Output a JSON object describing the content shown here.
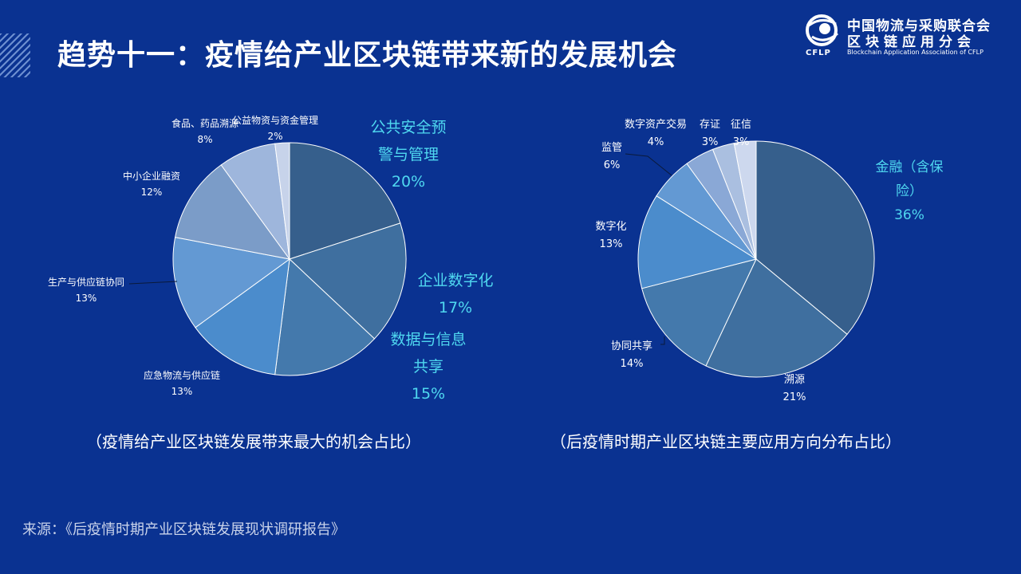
{
  "header": {
    "title": "趋势十一：疫情给产业区块链带来新的发展机会",
    "logo_line1": "中国物流与采购联合会",
    "logo_line2": "区块链应用分会",
    "logo_sub": "Blockchain Application Association of CFLP",
    "logo_abbr": "CFLP"
  },
  "chart_data": [
    {
      "type": "pie",
      "caption": "（疫情给产业区块链发展带来最大的机会占比）",
      "slices": [
        {
          "label": "公共安全预警与管理",
          "value": 20,
          "pct": "20%"
        },
        {
          "label": "企业数字化",
          "value": 17,
          "pct": "17%"
        },
        {
          "label": "数据与信息共享",
          "value": 15,
          "pct": "15%"
        },
        {
          "label": "应急物流与供应链",
          "value": 13,
          "pct": "13%"
        },
        {
          "label": "生产与供应链协同",
          "value": 13,
          "pct": "13%"
        },
        {
          "label": "中小企业融资",
          "value": 12,
          "pct": "12%"
        },
        {
          "label": "食品、药品溯源",
          "value": 8,
          "pct": "8%"
        },
        {
          "label": "公益物资与资金管理",
          "value": 2,
          "pct": "2%"
        }
      ],
      "colors": [
        "#365f8c",
        "#3f6f9f",
        "#4479ac",
        "#4b8ccc",
        "#6399d3",
        "#7b9cc8",
        "#9eb6dc",
        "#c7d3ea"
      ]
    },
    {
      "type": "pie",
      "caption": "（后疫情时期产业区块链主要应用方向分布占比）",
      "slices": [
        {
          "label": "金融（含保险）",
          "value": 36,
          "pct": "36%"
        },
        {
          "label": "溯源",
          "value": 21,
          "pct": "21%"
        },
        {
          "label": "协同共享",
          "value": 14,
          "pct": "14%"
        },
        {
          "label": "数字化",
          "value": 13,
          "pct": "13%"
        },
        {
          "label": "监管",
          "value": 6,
          "pct": "6%"
        },
        {
          "label": "数字资产交易",
          "value": 4,
          "pct": "4%"
        },
        {
          "label": "存证",
          "value": 3,
          "pct": "3%"
        },
        {
          "label": "征信",
          "value": 3,
          "pct": "3%"
        }
      ],
      "colors": [
        "#365f8c",
        "#3f6f9f",
        "#4479ac",
        "#4b8ccc",
        "#6399d3",
        "#8aa8d6",
        "#aabfe0",
        "#cdd8ee"
      ]
    }
  ],
  "footer": {
    "source": "来源：《后疫情时期产业区块链发展现状调研报告》"
  }
}
